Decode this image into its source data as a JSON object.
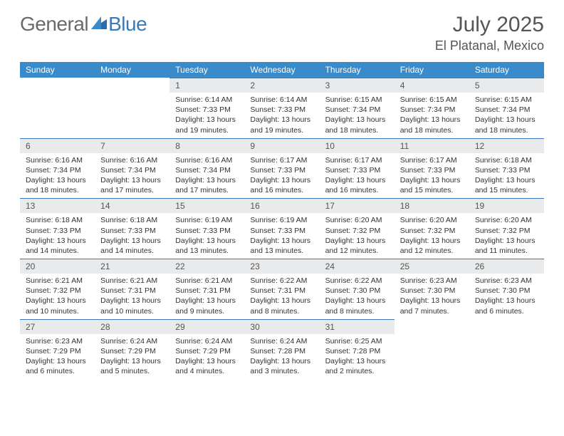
{
  "brand": {
    "part1": "General",
    "part2": "Blue"
  },
  "title": {
    "month": "July 2025",
    "location": "El Platanal, Mexico"
  },
  "colors": {
    "header_bg": "#3a8bc9",
    "header_text": "#ffffff",
    "daynum_bg": "#e9eaeb",
    "daynum_border": "#3a7ab8",
    "body_text": "#333333",
    "logo_gray": "#6a6a6a",
    "logo_blue": "#3a7ab8"
  },
  "weekdays": [
    "Sunday",
    "Monday",
    "Tuesday",
    "Wednesday",
    "Thursday",
    "Friday",
    "Saturday"
  ],
  "weeks": [
    [
      null,
      null,
      {
        "n": "1",
        "sr": "Sunrise: 6:14 AM",
        "ss": "Sunset: 7:33 PM",
        "d1": "Daylight: 13 hours",
        "d2": "and 19 minutes."
      },
      {
        "n": "2",
        "sr": "Sunrise: 6:14 AM",
        "ss": "Sunset: 7:33 PM",
        "d1": "Daylight: 13 hours",
        "d2": "and 19 minutes."
      },
      {
        "n": "3",
        "sr": "Sunrise: 6:15 AM",
        "ss": "Sunset: 7:34 PM",
        "d1": "Daylight: 13 hours",
        "d2": "and 18 minutes."
      },
      {
        "n": "4",
        "sr": "Sunrise: 6:15 AM",
        "ss": "Sunset: 7:34 PM",
        "d1": "Daylight: 13 hours",
        "d2": "and 18 minutes."
      },
      {
        "n": "5",
        "sr": "Sunrise: 6:15 AM",
        "ss": "Sunset: 7:34 PM",
        "d1": "Daylight: 13 hours",
        "d2": "and 18 minutes."
      }
    ],
    [
      {
        "n": "6",
        "sr": "Sunrise: 6:16 AM",
        "ss": "Sunset: 7:34 PM",
        "d1": "Daylight: 13 hours",
        "d2": "and 18 minutes."
      },
      {
        "n": "7",
        "sr": "Sunrise: 6:16 AM",
        "ss": "Sunset: 7:34 PM",
        "d1": "Daylight: 13 hours",
        "d2": "and 17 minutes."
      },
      {
        "n": "8",
        "sr": "Sunrise: 6:16 AM",
        "ss": "Sunset: 7:34 PM",
        "d1": "Daylight: 13 hours",
        "d2": "and 17 minutes."
      },
      {
        "n": "9",
        "sr": "Sunrise: 6:17 AM",
        "ss": "Sunset: 7:33 PM",
        "d1": "Daylight: 13 hours",
        "d2": "and 16 minutes."
      },
      {
        "n": "10",
        "sr": "Sunrise: 6:17 AM",
        "ss": "Sunset: 7:33 PM",
        "d1": "Daylight: 13 hours",
        "d2": "and 16 minutes."
      },
      {
        "n": "11",
        "sr": "Sunrise: 6:17 AM",
        "ss": "Sunset: 7:33 PM",
        "d1": "Daylight: 13 hours",
        "d2": "and 15 minutes."
      },
      {
        "n": "12",
        "sr": "Sunrise: 6:18 AM",
        "ss": "Sunset: 7:33 PM",
        "d1": "Daylight: 13 hours",
        "d2": "and 15 minutes."
      }
    ],
    [
      {
        "n": "13",
        "sr": "Sunrise: 6:18 AM",
        "ss": "Sunset: 7:33 PM",
        "d1": "Daylight: 13 hours",
        "d2": "and 14 minutes."
      },
      {
        "n": "14",
        "sr": "Sunrise: 6:18 AM",
        "ss": "Sunset: 7:33 PM",
        "d1": "Daylight: 13 hours",
        "d2": "and 14 minutes."
      },
      {
        "n": "15",
        "sr": "Sunrise: 6:19 AM",
        "ss": "Sunset: 7:33 PM",
        "d1": "Daylight: 13 hours",
        "d2": "and 13 minutes."
      },
      {
        "n": "16",
        "sr": "Sunrise: 6:19 AM",
        "ss": "Sunset: 7:33 PM",
        "d1": "Daylight: 13 hours",
        "d2": "and 13 minutes."
      },
      {
        "n": "17",
        "sr": "Sunrise: 6:20 AM",
        "ss": "Sunset: 7:32 PM",
        "d1": "Daylight: 13 hours",
        "d2": "and 12 minutes."
      },
      {
        "n": "18",
        "sr": "Sunrise: 6:20 AM",
        "ss": "Sunset: 7:32 PM",
        "d1": "Daylight: 13 hours",
        "d2": "and 12 minutes."
      },
      {
        "n": "19",
        "sr": "Sunrise: 6:20 AM",
        "ss": "Sunset: 7:32 PM",
        "d1": "Daylight: 13 hours",
        "d2": "and 11 minutes."
      }
    ],
    [
      {
        "n": "20",
        "sr": "Sunrise: 6:21 AM",
        "ss": "Sunset: 7:32 PM",
        "d1": "Daylight: 13 hours",
        "d2": "and 10 minutes."
      },
      {
        "n": "21",
        "sr": "Sunrise: 6:21 AM",
        "ss": "Sunset: 7:31 PM",
        "d1": "Daylight: 13 hours",
        "d2": "and 10 minutes."
      },
      {
        "n": "22",
        "sr": "Sunrise: 6:21 AM",
        "ss": "Sunset: 7:31 PM",
        "d1": "Daylight: 13 hours",
        "d2": "and 9 minutes."
      },
      {
        "n": "23",
        "sr": "Sunrise: 6:22 AM",
        "ss": "Sunset: 7:31 PM",
        "d1": "Daylight: 13 hours",
        "d2": "and 8 minutes."
      },
      {
        "n": "24",
        "sr": "Sunrise: 6:22 AM",
        "ss": "Sunset: 7:30 PM",
        "d1": "Daylight: 13 hours",
        "d2": "and 8 minutes."
      },
      {
        "n": "25",
        "sr": "Sunrise: 6:23 AM",
        "ss": "Sunset: 7:30 PM",
        "d1": "Daylight: 13 hours",
        "d2": "and 7 minutes."
      },
      {
        "n": "26",
        "sr": "Sunrise: 6:23 AM",
        "ss": "Sunset: 7:30 PM",
        "d1": "Daylight: 13 hours",
        "d2": "and 6 minutes."
      }
    ],
    [
      {
        "n": "27",
        "sr": "Sunrise: 6:23 AM",
        "ss": "Sunset: 7:29 PM",
        "d1": "Daylight: 13 hours",
        "d2": "and 6 minutes."
      },
      {
        "n": "28",
        "sr": "Sunrise: 6:24 AM",
        "ss": "Sunset: 7:29 PM",
        "d1": "Daylight: 13 hours",
        "d2": "and 5 minutes."
      },
      {
        "n": "29",
        "sr": "Sunrise: 6:24 AM",
        "ss": "Sunset: 7:29 PM",
        "d1": "Daylight: 13 hours",
        "d2": "and 4 minutes."
      },
      {
        "n": "30",
        "sr": "Sunrise: 6:24 AM",
        "ss": "Sunset: 7:28 PM",
        "d1": "Daylight: 13 hours",
        "d2": "and 3 minutes."
      },
      {
        "n": "31",
        "sr": "Sunrise: 6:25 AM",
        "ss": "Sunset: 7:28 PM",
        "d1": "Daylight: 13 hours",
        "d2": "and 2 minutes."
      },
      null,
      null
    ]
  ]
}
